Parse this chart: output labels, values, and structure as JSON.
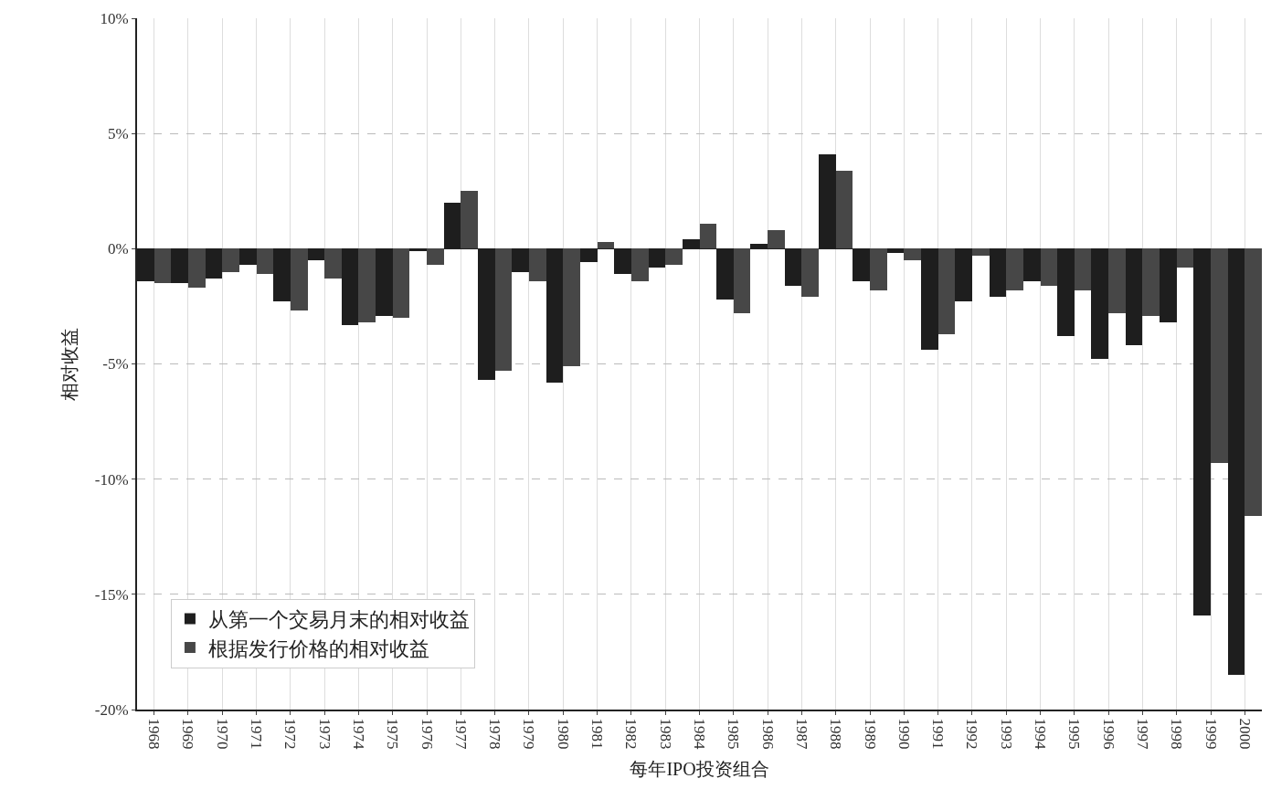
{
  "chart_data": {
    "type": "bar",
    "xlabel": "每年IPO投资组合",
    "ylabel": "相对收益",
    "categories": [
      "1968",
      "1969",
      "1970",
      "1971",
      "1972",
      "1973",
      "1974",
      "1975",
      "1976",
      "1977",
      "1978",
      "1979",
      "1980",
      "1981",
      "1982",
      "1983",
      "1984",
      "1985",
      "1986",
      "1987",
      "1988",
      "1989",
      "1990",
      "1991",
      "1992",
      "1993",
      "1994",
      "1995",
      "1996",
      "1997",
      "1998",
      "1999",
      "2000"
    ],
    "series": [
      {
        "name": "从第一个交易月末的相对收益",
        "color": "#1e1e1e",
        "values": [
          -1.4,
          -1.5,
          -1.3,
          -0.7,
          -2.3,
          -0.5,
          -3.3,
          -2.9,
          -0.1,
          2.0,
          -5.7,
          -1.0,
          -5.8,
          -0.6,
          -1.1,
          -0.8,
          0.4,
          -2.2,
          0.2,
          -1.6,
          4.1,
          -1.4,
          -0.2,
          -4.4,
          -2.3,
          -2.1,
          -1.4,
          -3.8,
          -4.8,
          -4.2,
          -3.2,
          -15.9,
          -18.5
        ]
      },
      {
        "name": "根据发行价格的相对收益",
        "color": "#474747",
        "values": [
          -1.5,
          -1.7,
          -1.0,
          -1.1,
          -2.7,
          -1.3,
          -3.2,
          -3.0,
          -0.7,
          2.5,
          -5.3,
          -1.4,
          -5.1,
          0.3,
          -1.4,
          -0.7,
          1.1,
          -2.8,
          0.8,
          -2.1,
          3.4,
          -1.8,
          -0.5,
          -3.7,
          -0.3,
          -1.8,
          -1.6,
          -1.8,
          -2.8,
          -2.9,
          -0.8,
          -9.3,
          -11.6
        ]
      }
    ],
    "ylim": [
      -20,
      10
    ],
    "yticks": [
      {
        "value": -20,
        "label": "-20%"
      },
      {
        "value": -15,
        "label": "-15%"
      },
      {
        "value": -10,
        "label": "-10%"
      },
      {
        "value": -5,
        "label": "-5%"
      },
      {
        "value": 0,
        "label": "0%"
      },
      {
        "value": 5,
        "label": "5%"
      },
      {
        "value": 10,
        "label": "10%"
      }
    ],
    "grid": true,
    "legend": "bottom left"
  }
}
